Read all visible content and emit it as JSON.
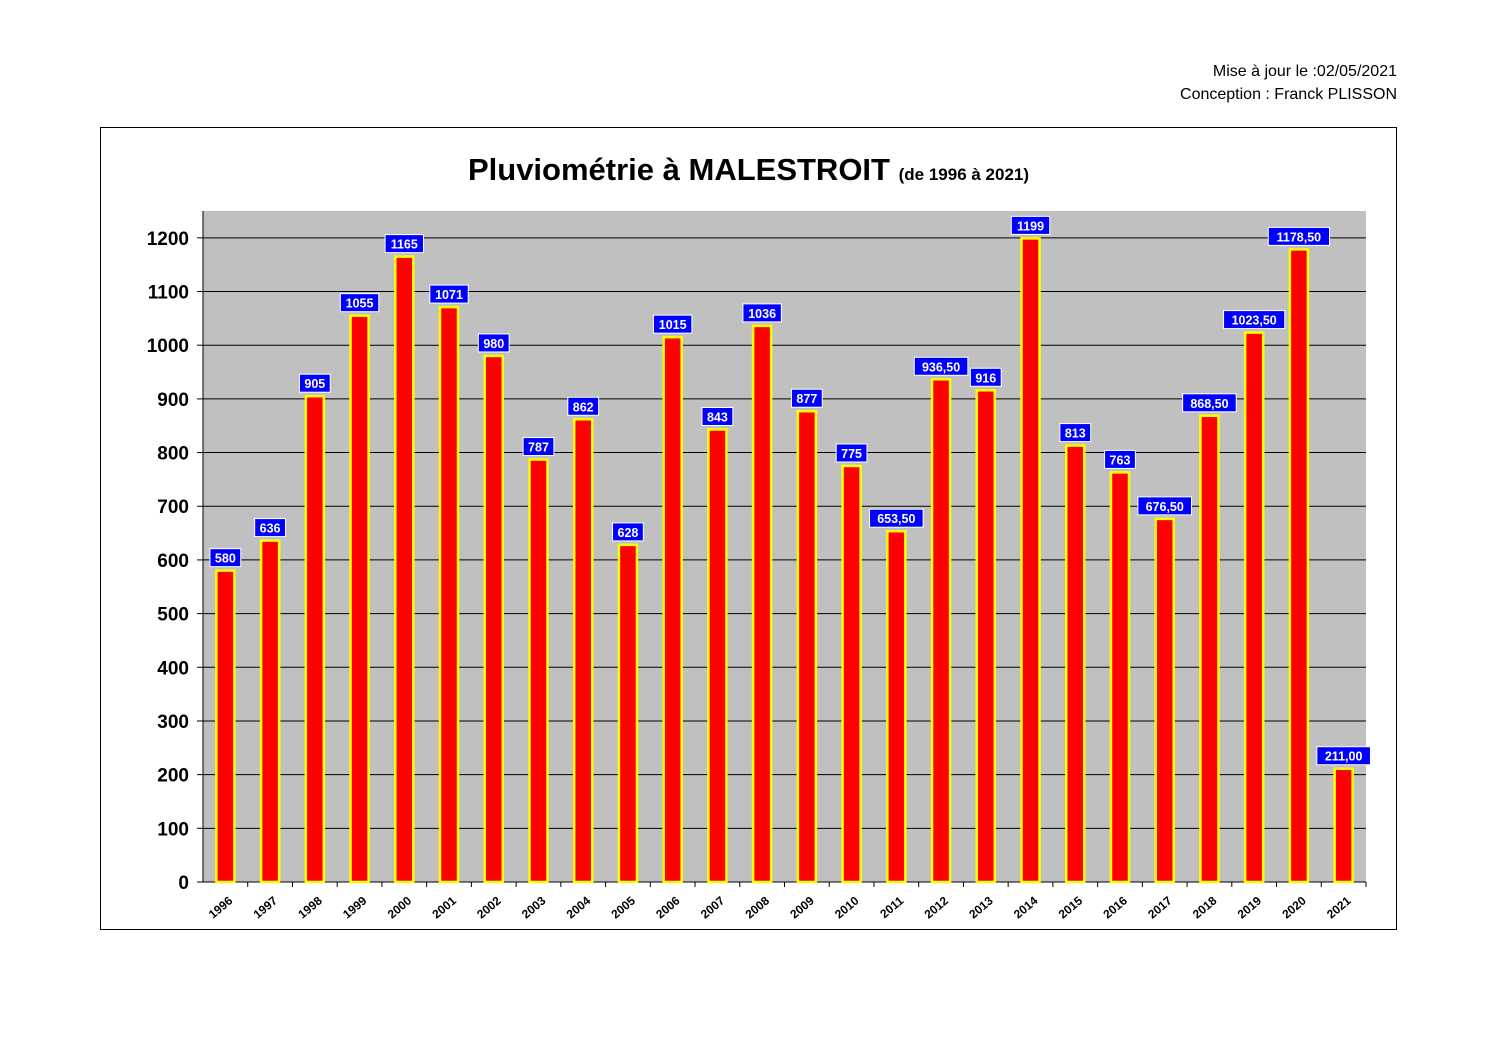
{
  "header": {
    "updated": "Mise à jour le :02/05/2021",
    "author": "Conception : Franck PLISSON"
  },
  "chart_data": {
    "type": "bar",
    "title": "Pluviométrie à MALESTROIT",
    "subtitle": "(de 1996 à 2021)",
    "xlabel": "",
    "ylabel": "",
    "ylim": [
      0,
      1250
    ],
    "yticks": [
      0,
      100,
      200,
      300,
      400,
      500,
      600,
      700,
      800,
      900,
      1000,
      1100,
      1200
    ],
    "grid": true,
    "categories": [
      "1996",
      "1997",
      "1998",
      "1999",
      "2000",
      "2001",
      "2002",
      "2003",
      "2004",
      "2005",
      "2006",
      "2007",
      "2008",
      "2009",
      "2010",
      "2011",
      "2012",
      "2013",
      "2014",
      "2015",
      "2016",
      "2017",
      "2018",
      "2019",
      "2020",
      "2021"
    ],
    "values": [
      580,
      636,
      905,
      1055,
      1165,
      1071,
      980,
      787,
      862,
      628,
      1015,
      843,
      1036,
      877,
      775,
      653.5,
      936.5,
      916,
      1199,
      813,
      763,
      676.5,
      868.5,
      1023.5,
      1178.5,
      211
    ],
    "data_labels": [
      "580",
      "636",
      "905",
      "1055",
      "1165",
      "1071",
      "980",
      "787",
      "862",
      "628",
      "1015",
      "843",
      "1036",
      "877",
      "775",
      "653,50",
      "936,50",
      "916",
      "1199",
      "813",
      "763",
      "676,50",
      "868,50",
      "1023,50",
      "1178,50",
      "211,00"
    ],
    "colors": {
      "bar": "#ff0000",
      "bar_border": "#ffff00",
      "plot_bg": "#c0c0c0",
      "label_bg": "#0000ff",
      "label_text": "#ffffff"
    }
  }
}
